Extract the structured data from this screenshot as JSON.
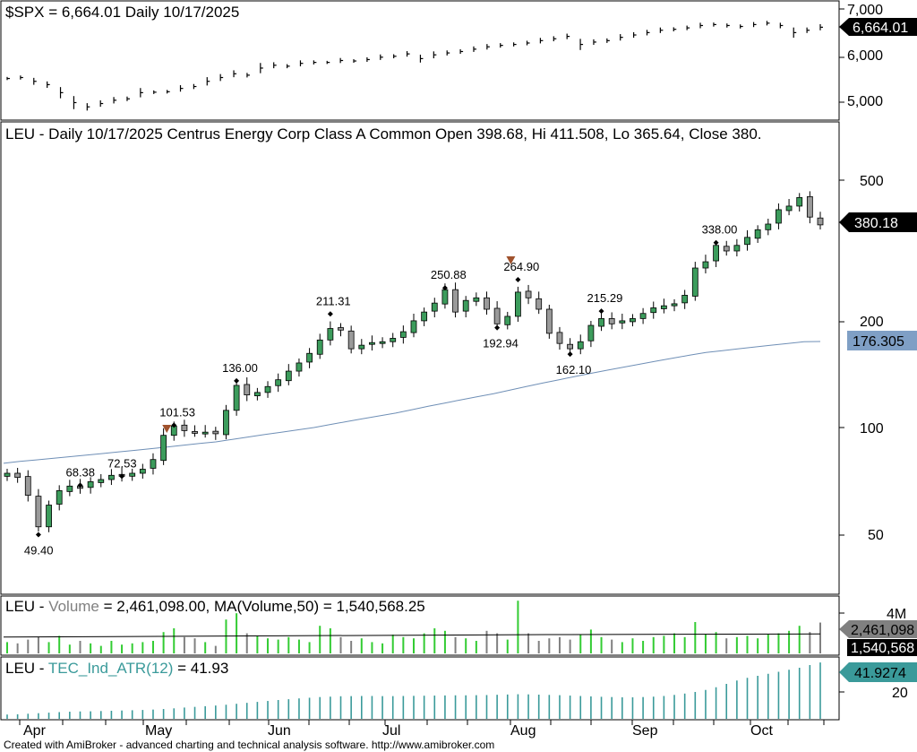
{
  "panels": {
    "spx": {
      "title": "$SPX = 6,664.01 Daily 10/17/2025",
      "ticks": [
        "7,000",
        "6,000",
        "5,000"
      ],
      "last_tag": "6,664.01"
    },
    "price": {
      "title": "LEU - Daily 10/17/2025 Centrus Energy Corp Class A Common Open 398.68, Hi 411.508, Lo 365.64, Close 380.",
      "ticks": [
        "500",
        "200",
        "100",
        "50"
      ],
      "last_tag": "380.18",
      "ma_tag": "176.305"
    },
    "volume": {
      "prefix": "LEU - ",
      "name": "Volume",
      "text": " = 2,461,098.00, MA(Volume,50) = 1,540,568.25",
      "tick": "4M",
      "vol_tag": "2,461,098",
      "ma_tag": "1,540,568"
    },
    "atr": {
      "prefix": "LEU - ",
      "name": "TEC_Ind_ATR(12)",
      "text": " = 41.93",
      "tick": "20",
      "tag": "41.9274"
    }
  },
  "months": [
    "Apr",
    "May",
    "Jun",
    "Jul",
    "Aug",
    "Sep",
    "Oct"
  ],
  "footer": "Created with AmiBroker - advanced charting and technical analysis software. http://www.amibroker.com",
  "colors": {
    "up": "#3c9c5c",
    "down": "#9a9a9a",
    "ma": "#6f8fb6",
    "volume_up": "#33cc33",
    "volume_down": "#808080",
    "atr": "#3a9a9a",
    "marker": "#a0522d"
  },
  "chart_data": [
    {
      "type": "line",
      "title": "$SPX = 6,664.01 Daily 10/17/2025",
      "series": [
        {
          "name": "$SPX",
          "values": [
            5580,
            5600,
            5520,
            5450,
            5280,
            5070,
            4980,
            5050,
            5120,
            5150,
            5280,
            5290,
            5300,
            5370,
            5410,
            5520,
            5600,
            5680,
            5650,
            5800,
            5860,
            5840,
            5900,
            5920,
            5920,
            5960,
            5950,
            5980,
            6030,
            6050,
            6100,
            6000,
            6080,
            6120,
            6150,
            6200,
            6250,
            6280,
            6300,
            6330,
            6380,
            6420,
            6470,
            6300,
            6350,
            6380,
            6450,
            6500,
            6550,
            6600,
            6620,
            6650,
            6700,
            6720,
            6700,
            6680,
            6720,
            6750,
            6700,
            6550,
            6600,
            6664
          ]
        }
      ],
      "ylim": [
        4700,
        7050
      ]
    },
    {
      "type": "bar",
      "title": "LEU - Daily 10/17/2025 Centrus Energy Corp Class A Common Open 398.68, Hi 411.508, Lo 365.64, Close 380.",
      "log_scale": true,
      "ylim": [
        34,
        600
      ],
      "annotations": [
        {
          "label": "49.40",
          "index": 3,
          "value": 49.4
        },
        {
          "label": "68.38",
          "index": 7,
          "value": 68.38
        },
        {
          "label": "72.53",
          "index": 11,
          "value": 72.53
        },
        {
          "label": "101.53",
          "index": 16,
          "value": 101.53
        },
        {
          "label": "136.00",
          "index": 22,
          "value": 136.0
        },
        {
          "label": "211.31",
          "index": 31,
          "value": 211.31
        },
        {
          "label": "250.88",
          "index": 42,
          "value": 250.88
        },
        {
          "label": "192.94",
          "index": 47,
          "value": 192.94
        },
        {
          "label": "264.90",
          "index": 49,
          "value": 264.9
        },
        {
          "label": "162.10",
          "index": 54,
          "value": 162.1
        },
        {
          "label": "215.29",
          "index": 57,
          "value": 215.29
        },
        {
          "label": "338.00",
          "index": 68,
          "value": 338.0
        }
      ],
      "series": [
        {
          "name": "LEU",
          "values": [
            74,
            72,
            64,
            52,
            60,
            66,
            68,
            67,
            70,
            71,
            73,
            73,
            74,
            76,
            81,
            95,
            101,
            98,
            97,
            97,
            96,
            112,
            132,
            124,
            126,
            131,
            137,
            145,
            153,
            163,
            178,
            192,
            190,
            168,
            172,
            175,
            176,
            180,
            188,
            202,
            214,
            227,
            248,
            214,
            231,
            235,
            218,
            198,
            208,
            244,
            235,
            218,
            186,
            174,
            168,
            176,
            196,
            205,
            198,
            202,
            205,
            212,
            220,
            223,
            226,
            239,
            286,
            298,
            332,
            320,
            332,
            350,
            368,
            382,
            420,
            430,
            455,
            400,
            380
          ]
        },
        {
          "name": "MA",
          "values": [
            79,
            80,
            80.8,
            81.6,
            82.5,
            83.3,
            84.2,
            85.1,
            86,
            87,
            88,
            89,
            90,
            91,
            92.5,
            94,
            95.5,
            97,
            98.5,
            100,
            102,
            104,
            106,
            108,
            110,
            112.5,
            115,
            117.5,
            120,
            122.5,
            125,
            128,
            131,
            134,
            137,
            140,
            143,
            146,
            149,
            152,
            155,
            158,
            161,
            164,
            166,
            168,
            170,
            172,
            174,
            176,
            176.3
          ]
        }
      ]
    },
    {
      "type": "bar",
      "title": "LEU - Volume = 2,461,098.00, MA(Volume,50) = 1,540,568.25",
      "ylim": [
        0,
        4000000
      ],
      "series": [
        {
          "name": "Volume",
          "values": [
            0.9,
            0.8,
            1.1,
            1.3,
            0.9,
            1.4,
            0.7,
            1.0,
            0.8,
            0.6,
            1.0,
            0.7,
            0.8,
            0.9,
            1.0,
            1.7,
            2.0,
            1.3,
            1.2,
            0.9,
            0.6,
            2.7,
            3.2,
            1.6,
            1.4,
            1.2,
            1.1,
            1.3,
            1.1,
            0.9,
            2.2,
            2.0,
            1.3,
            1.0,
            1.2,
            0.9,
            0.8,
            1.5,
            1.3,
            1.2,
            1.6,
            2.0,
            1.8,
            1.3,
            1.2,
            1.0,
            1.8,
            1.6,
            1.1,
            4.2,
            1.6,
            1.0,
            1.2,
            1.3,
            1.1,
            1.5,
            1.9,
            1.3,
            1.1,
            0.9,
            1.2,
            1.0,
            1.3,
            1.4,
            1.6,
            1.3,
            2.5,
            1.5,
            1.7,
            1.2,
            1.3,
            1.4,
            1.2,
            1.5,
            1.6,
            1.8,
            2.2,
            1.7,
            2.46
          ]
        },
        {
          "name": "MA(Volume,50)",
          "values": [
            1.3,
            1.4,
            1.5,
            1.55
          ]
        }
      ]
    },
    {
      "type": "bar",
      "title": "LEU - TEC_Ind_ATR(12) = 41.93",
      "ylim": [
        0,
        45
      ],
      "series": [
        {
          "name": "TEC_Ind_ATR(12)",
          "values": [
            3.2,
            3.4,
            3.8,
            4.2,
            4.6,
            5.0,
            5.3,
            5.5,
            5.6,
            5.8,
            6.0,
            6.2,
            6.4,
            6.6,
            6.9,
            7.3,
            7.8,
            8.4,
            8.9,
            9.4,
            9.9,
            10.5,
            11.2,
            11.9,
            12.6,
            13.3,
            14.0,
            14.6,
            15.2,
            15.7,
            16.2,
            16.5,
            16.8,
            16.9,
            17.0,
            17.0,
            16.9,
            16.9,
            17.0,
            17.1,
            17.2,
            17.3,
            17.4,
            17.5,
            17.5,
            17.6,
            17.7,
            17.9,
            18.1,
            18.3,
            18.2,
            18.0,
            17.8,
            17.6,
            17.3,
            17.0,
            16.7,
            16.4,
            16.2,
            16.0,
            16.0,
            16.2,
            16.5,
            17.0,
            17.8,
            18.8,
            20.0,
            21.5,
            23.5,
            26.0,
            28.5,
            30.5,
            32.0,
            33.5,
            35.0,
            36.5,
            38.0,
            40.0,
            41.93
          ]
        }
      ]
    }
  ]
}
